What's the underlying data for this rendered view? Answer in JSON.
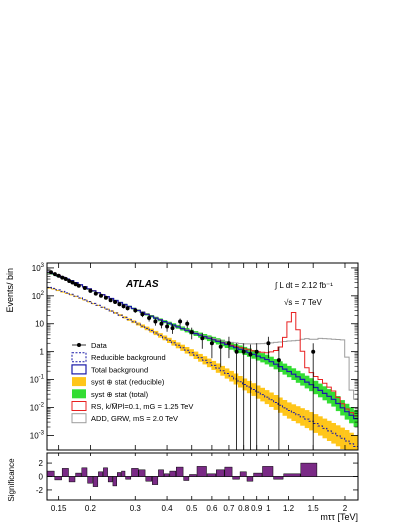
{
  "chart_data": {
    "type": "line",
    "atlas_label": "ATLAS",
    "lumi_label": "∫ L dt = 2.12 fb⁻¹",
    "energy_label": "√s = 7 TeV",
    "xlabel": "mττ [TeV]",
    "ylabel": "Events/ bin",
    "ratio_ylabel": "Significance",
    "xscale": "log",
    "xlim": [
      0.135,
      2.25
    ],
    "yscale": "log",
    "ylim": [
      0.0003,
      1500
    ],
    "ratio_ylim": [
      -3.5,
      3.5
    ],
    "legend_position": "lower-left",
    "x_ticks": [
      0.15,
      0.2,
      0.3,
      0.4,
      0.5,
      0.6,
      0.7,
      0.8,
      0.9,
      1,
      1.2,
      1.5,
      2
    ],
    "x_tick_labels": [
      "0.15",
      "0.2",
      "0.3",
      "0.4",
      "0.5",
      "0.6",
      "0.7",
      "0.8",
      "0.9",
      "1",
      "1.2",
      "1.5",
      "2"
    ],
    "y_ticks": [
      {
        "value": 0.001,
        "base": "10",
        "exp": "-3"
      },
      {
        "value": 0.01,
        "base": "10",
        "exp": "-2"
      },
      {
        "value": 0.1,
        "base": "10",
        "exp": "-1"
      },
      {
        "value": 1,
        "base": "1",
        "exp": ""
      },
      {
        "value": 10,
        "base": "10",
        "exp": ""
      },
      {
        "value": 100,
        "base": "10",
        "exp": "2"
      },
      {
        "value": 1000,
        "base": "10",
        "exp": "3"
      }
    ],
    "ratio_y_ticks": [
      2,
      0,
      -2
    ],
    "ratio_y_tick_labels": [
      "2",
      "0",
      "-2"
    ],
    "colors": {
      "data": "#000000",
      "reducible": "#1a1aa8",
      "total": "#1a1aa8",
      "syst_reducible": "#ffc61a",
      "syst_total": "#33dd33",
      "rs": "#e82020",
      "add": "#9c9c9c",
      "significance": "#7a2a86"
    },
    "legend": [
      {
        "kind": "data",
        "label": "Data"
      },
      {
        "kind": "dashed",
        "label": "Reducible background"
      },
      {
        "kind": "solid",
        "label": "Total background"
      },
      {
        "kind": "fill-yellow",
        "label": "syst ⊕ stat (reducible)"
      },
      {
        "kind": "fill-green",
        "label": "syst ⊕ stat (total)"
      },
      {
        "kind": "rs",
        "label": "RS, k/M̅Pl=0.1, mG = 1.25 TeV"
      },
      {
        "kind": "add",
        "label": "ADD, GRW, mS = 2.0 TeV"
      }
    ],
    "series": [
      {
        "name": "Data",
        "x": [
          0.14,
          0.145,
          0.15,
          0.155,
          0.16,
          0.165,
          0.17,
          0.175,
          0.18,
          0.19,
          0.2,
          0.21,
          0.22,
          0.23,
          0.24,
          0.25,
          0.26,
          0.27,
          0.28,
          0.3,
          0.32,
          0.34,
          0.36,
          0.38,
          0.4,
          0.42,
          0.45,
          0.48,
          0.5,
          0.55,
          0.6,
          0.65,
          0.7,
          0.75,
          0.8,
          0.85,
          0.9,
          1.0,
          1.1,
          1.5
        ],
        "y": [
          700,
          600,
          520,
          450,
          400,
          340,
          300,
          260,
          230,
          190,
          150,
          120,
          100,
          85,
          70,
          60,
          50,
          42,
          36,
          30,
          22,
          16,
          12,
          10,
          8,
          7,
          12,
          10,
          5,
          3,
          2,
          1.5,
          2,
          1,
          1,
          0.8,
          1,
          2,
          0.5,
          1
        ]
      },
      {
        "name": "Reducible background",
        "x": [
          0.14,
          0.15,
          0.17,
          0.2,
          0.25,
          0.3,
          0.35,
          0.4,
          0.5,
          0.6,
          0.7,
          0.8,
          1.0,
          1.2,
          1.5,
          1.8,
          2.0,
          2.2
        ],
        "y": [
          200,
          160,
          110,
          60,
          25,
          11,
          5.5,
          2.8,
          0.9,
          0.35,
          0.15,
          0.07,
          0.022,
          0.008,
          0.003,
          0.0012,
          0.0007,
          0.0004
        ]
      },
      {
        "name": "Total background",
        "x": [
          0.14,
          0.15,
          0.17,
          0.2,
          0.25,
          0.3,
          0.35,
          0.4,
          0.5,
          0.6,
          0.7,
          0.8,
          1.0,
          1.2,
          1.5,
          1.8,
          2.0,
          2.2
        ],
        "y": [
          700,
          520,
          340,
          170,
          70,
          33,
          18,
          11,
          5,
          2.8,
          1.7,
          1.1,
          0.5,
          0.2,
          0.06,
          0.02,
          0.008,
          0.004
        ]
      },
      {
        "name": "RS, k/M̅Pl=0.1, mG = 1.25 TeV",
        "x": [
          0.14,
          0.2,
          0.3,
          0.4,
          0.5,
          0.6,
          0.7,
          0.8,
          0.9,
          1.0,
          1.1,
          1.15,
          1.2,
          1.25,
          1.3,
          1.35,
          1.4,
          1.5,
          1.6,
          1.8,
          2.0,
          2.2
        ],
        "y": [
          700,
          170,
          33,
          11,
          5,
          2.8,
          1.8,
          1.3,
          1.0,
          0.9,
          1.2,
          2.5,
          10,
          30,
          8,
          1.5,
          0.3,
          0.15,
          0.1,
          0.04,
          0.01,
          0.005
        ]
      },
      {
        "name": "ADD, GRW, mS = 2.0 TeV",
        "x": [
          0.14,
          0.2,
          0.3,
          0.4,
          0.5,
          0.6,
          0.7,
          0.8,
          0.9,
          1.0,
          1.1,
          1.2,
          1.3,
          1.4,
          1.5,
          1.6,
          1.8,
          2.0,
          2.1,
          2.2
        ],
        "y": [
          700,
          170,
          33,
          11,
          5.2,
          3.0,
          2.2,
          1.9,
          1.9,
          2.0,
          2.2,
          2.4,
          2.5,
          3,
          2.7,
          3.0,
          2.8,
          2.6,
          0.05,
          0.02
        ]
      }
    ],
    "significance": {
      "x": [
        0.14,
        0.15,
        0.16,
        0.17,
        0.18,
        0.19,
        0.2,
        0.21,
        0.22,
        0.23,
        0.24,
        0.25,
        0.26,
        0.27,
        0.28,
        0.3,
        0.32,
        0.34,
        0.36,
        0.38,
        0.4,
        0.42,
        0.45,
        0.48,
        0.5,
        0.55,
        0.6,
        0.65,
        0.7,
        0.75,
        0.8,
        0.85,
        0.9,
        1.0,
        1.1,
        1.2,
        1.5
      ],
      "y": [
        0.8,
        -0.5,
        1.2,
        -0.8,
        0.5,
        1.3,
        -1.0,
        -1.5,
        0.7,
        1.3,
        -0.8,
        -1.4,
        0.6,
        0.8,
        -0.4,
        1.2,
        1.0,
        -0.7,
        -1.2,
        1.0,
        0.4,
        0.8,
        1.4,
        -0.6,
        0.3,
        1.5,
        0.4,
        1.0,
        1.4,
        -0.4,
        0.7,
        -0.7,
        0.5,
        1.5,
        -0.4,
        0.4,
        2.0
      ]
    }
  }
}
